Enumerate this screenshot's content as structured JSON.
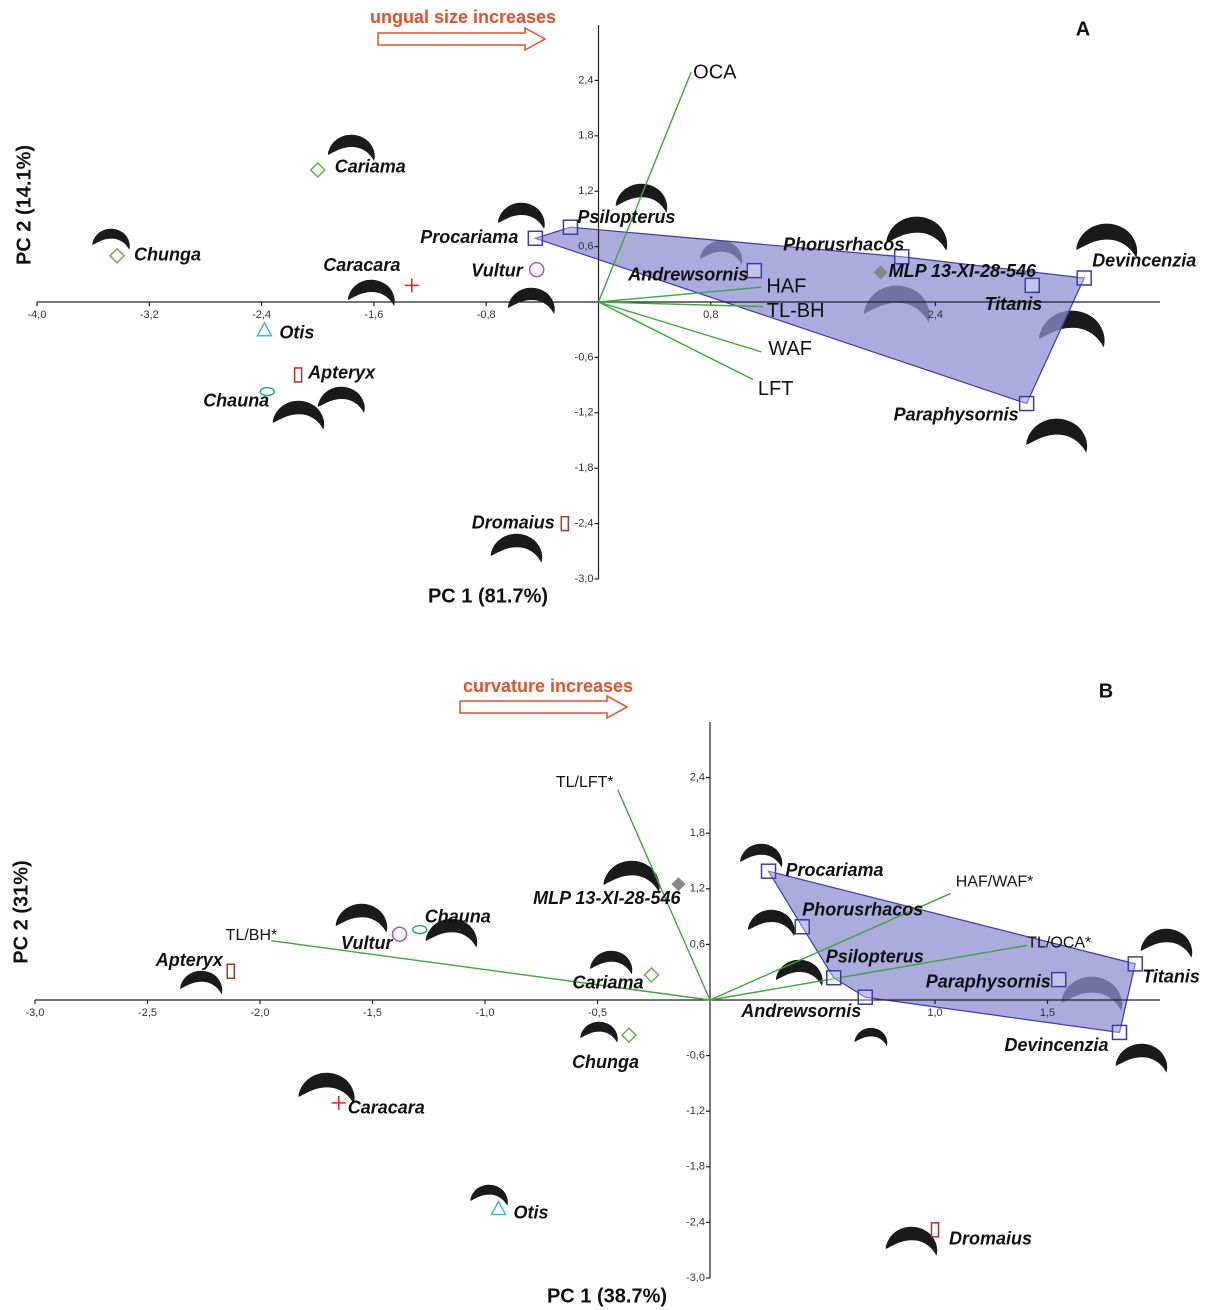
{
  "chart_data": [
    {
      "type": "biplot",
      "title": "A",
      "annotation": "ungual size increases",
      "x_label": "PC 1 (81.7%)",
      "y_label": "PC 2 (14.1%)",
      "xlim": [
        -4,
        4
      ],
      "ylim": [
        -3,
        3
      ],
      "xticks": [
        {
          "value": -4,
          "label": "-4,0"
        },
        {
          "value": -3.2,
          "label": "-3,2"
        },
        {
          "value": -2.4,
          "label": "-2,4"
        },
        {
          "value": -1.6,
          "label": "-1,6"
        },
        {
          "value": -0.8,
          "label": "-0,8"
        },
        {
          "value": 0.8,
          "label": "0,8"
        },
        {
          "value": 2.4,
          "label": "2,4"
        }
      ],
      "yticks": [
        {
          "value": 2.4,
          "label": "2,4"
        },
        {
          "value": 1.8,
          "label": "1,8"
        },
        {
          "value": 1.2,
          "label": "1,2"
        },
        {
          "value": 0.6,
          "label": "0,6"
        },
        {
          "value": -0.6,
          "label": "-0,6"
        },
        {
          "value": -1.2,
          "label": "-1,2"
        },
        {
          "value": -1.8,
          "label": "-1,8"
        },
        {
          "value": -2.4,
          "label": "-2,4"
        },
        {
          "value": -3,
          "label": "-3,0"
        }
      ],
      "hull_color": "#8f8fd2",
      "loading_color": "#3aa83a",
      "points": [
        {
          "name": "Cariama",
          "x": -2.0,
          "y": 1.43,
          "color": "#6ab04c",
          "marker": "diamond",
          "in_hull": false
        },
        {
          "name": "Chunga",
          "x": -3.43,
          "y": 0.5,
          "color": "#6ab04c",
          "marker": "diamond",
          "in_hull": false
        },
        {
          "name": "Caracara",
          "x": -1.33,
          "y": 0.18,
          "color": "#e02020",
          "marker": "plus",
          "in_hull": false
        },
        {
          "name": "Otis",
          "x": -2.38,
          "y": -0.3,
          "color": "#4bb3d9",
          "marker": "triangle",
          "in_hull": false
        },
        {
          "name": "Apteryx",
          "x": -2.14,
          "y": -0.79,
          "color": "#b03030",
          "marker": "rect",
          "in_hull": false
        },
        {
          "name": "Chauna",
          "x": -2.36,
          "y": -0.97,
          "color": "#2aa198",
          "marker": "ellipse",
          "in_hull": false
        },
        {
          "name": "Vultur",
          "x": -0.44,
          "y": 0.35,
          "color": "#b050c0",
          "marker": "circle",
          "in_hull": false
        },
        {
          "name": "Dromaius",
          "x": -0.24,
          "y": -2.4,
          "color": "#b03030",
          "marker": "rect",
          "in_hull": false
        },
        {
          "name": "Procariama",
          "x": -0.45,
          "y": 0.69,
          "color": "#3b3bb0",
          "marker": "square",
          "in_hull": true
        },
        {
          "name": "Psilopterus",
          "x": -0.2,
          "y": 0.81,
          "color": "#3b3bb0",
          "marker": "square",
          "in_hull": true
        },
        {
          "name": "Andrewsornis",
          "x": 1.11,
          "y": 0.34,
          "color": "#3b3bb0",
          "marker": "square",
          "in_hull": true
        },
        {
          "name": "Phorusrhacos",
          "x": 2.16,
          "y": 0.49,
          "color": "#3b3bb0",
          "marker": "square",
          "in_hull": true
        },
        {
          "name": "MLP 13-XI-28-546",
          "x": 2.01,
          "y": 0.32,
          "color": "#888888",
          "marker": "filled-diamond",
          "in_hull": false
        },
        {
          "name": "Titanis",
          "x": 3.09,
          "y": 0.18,
          "color": "#3b3bb0",
          "marker": "square",
          "in_hull": true
        },
        {
          "name": "Devincenzia",
          "x": 3.46,
          "y": 0.26,
          "color": "#3b3bb0",
          "marker": "square",
          "in_hull": true
        },
        {
          "name": "Paraphysornis",
          "x": 3.05,
          "y": -1.1,
          "color": "#3b3bb0",
          "marker": "square",
          "in_hull": true
        }
      ],
      "loadings": [
        {
          "name": "OCA",
          "x": 0.66,
          "y": 2.49
        },
        {
          "name": "HAF",
          "x": 1.16,
          "y": 0.16
        },
        {
          "name": "TL-BH",
          "x": 1.17,
          "y": -0.05
        },
        {
          "name": "WAF",
          "x": 1.16,
          "y": -0.54
        },
        {
          "name": "LFT",
          "x": 1.1,
          "y": -0.84
        }
      ]
    },
    {
      "type": "biplot",
      "title": "B",
      "annotation": "curvature increases",
      "x_label": "PC 1 (38.7%)",
      "y_label": "PC 2 (31%)",
      "xlim": [
        -3,
        2
      ],
      "ylim": [
        -3,
        3
      ],
      "xticks": [
        {
          "value": -3,
          "label": "-3,0"
        },
        {
          "value": -2.5,
          "label": "-2,5"
        },
        {
          "value": -2,
          "label": "-2,0"
        },
        {
          "value": -1.5,
          "label": "-1,5"
        },
        {
          "value": -1,
          "label": "-1,0"
        },
        {
          "value": -0.5,
          "label": "-0,5"
        },
        {
          "value": 1,
          "label": "1,0"
        },
        {
          "value": 1.5,
          "label": "1,5"
        }
      ],
      "yticks": [
        {
          "value": 2.4,
          "label": "2,4"
        },
        {
          "value": 1.8,
          "label": "1,8"
        },
        {
          "value": 1.2,
          "label": "1,2"
        },
        {
          "value": 0.6,
          "label": "0,6"
        },
        {
          "value": -0.6,
          "label": "-0,6"
        },
        {
          "value": -1.2,
          "label": "-1,2"
        },
        {
          "value": -1.8,
          "label": "-1,8"
        },
        {
          "value": -2.4,
          "label": "-2,4"
        },
        {
          "value": -3,
          "label": "-3,0"
        }
      ],
      "hull_color": "#8f8fd2",
      "loading_color": "#3aa83a",
      "points": [
        {
          "name": "Apteryx",
          "x": -2.13,
          "y": 0.31,
          "color": "#b03030",
          "marker": "rect",
          "in_hull": false
        },
        {
          "name": "Vultur",
          "x": -1.38,
          "y": 0.71,
          "color": "#b050c0",
          "marker": "circle",
          "in_hull": false
        },
        {
          "name": "Chauna",
          "x": -1.29,
          "y": 0.76,
          "color": "#2aa198",
          "marker": "ellipse",
          "in_hull": false
        },
        {
          "name": "Cariama",
          "x": -0.26,
          "y": 0.27,
          "color": "#6ab04c",
          "marker": "diamond",
          "in_hull": false
        },
        {
          "name": "Chunga",
          "x": -0.36,
          "y": -0.38,
          "color": "#6ab04c",
          "marker": "diamond",
          "in_hull": false
        },
        {
          "name": "Caracara",
          "x": -1.65,
          "y": -1.11,
          "color": "#e02020",
          "marker": "plus",
          "in_hull": false
        },
        {
          "name": "Otis",
          "x": -0.94,
          "y": -2.25,
          "color": "#4bb3d9",
          "marker": "triangle",
          "in_hull": false
        },
        {
          "name": "Dromaius",
          "x": 1.0,
          "y": -2.48,
          "color": "#b03030",
          "marker": "rect",
          "in_hull": false
        },
        {
          "name": "MLP 13-XI-28-546",
          "x": -0.14,
          "y": 1.25,
          "color": "#888888",
          "marker": "filled-diamond",
          "in_hull": false
        },
        {
          "name": "Procariama",
          "x": 0.26,
          "y": 1.39,
          "color": "#3b3bb0",
          "marker": "square",
          "in_hull": true
        },
        {
          "name": "Phorusrhacos",
          "x": 0.41,
          "y": 0.79,
          "color": "#3b3bb0",
          "marker": "square",
          "in_hull": true
        },
        {
          "name": "Psilopterus",
          "x": 0.55,
          "y": 0.24,
          "color": "#3b3bb0",
          "marker": "square",
          "in_hull": true
        },
        {
          "name": "Andrewsornis",
          "x": 0.69,
          "y": 0.03,
          "color": "#3b3bb0",
          "marker": "square",
          "in_hull": true
        },
        {
          "name": "Paraphysornis",
          "x": 1.55,
          "y": 0.22,
          "color": "#3b3bb0",
          "marker": "square",
          "in_hull": true
        },
        {
          "name": "Titanis",
          "x": 1.89,
          "y": 0.39,
          "color": "#3b3bb0",
          "marker": "square",
          "in_hull": true
        },
        {
          "name": "Devincenzia",
          "x": 1.82,
          "y": -0.35,
          "color": "#3b3bb0",
          "marker": "square",
          "in_hull": true
        }
      ],
      "loadings": [
        {
          "name": "TL/LFT*",
          "x": -0.41,
          "y": 2.27
        },
        {
          "name": "TL/BH*",
          "x": -1.95,
          "y": 0.64
        },
        {
          "name": "HAF/WAF*",
          "x": 1.07,
          "y": 1.15
        },
        {
          "name": "TL/OCA*",
          "x": 1.41,
          "y": 0.59
        }
      ]
    }
  ]
}
